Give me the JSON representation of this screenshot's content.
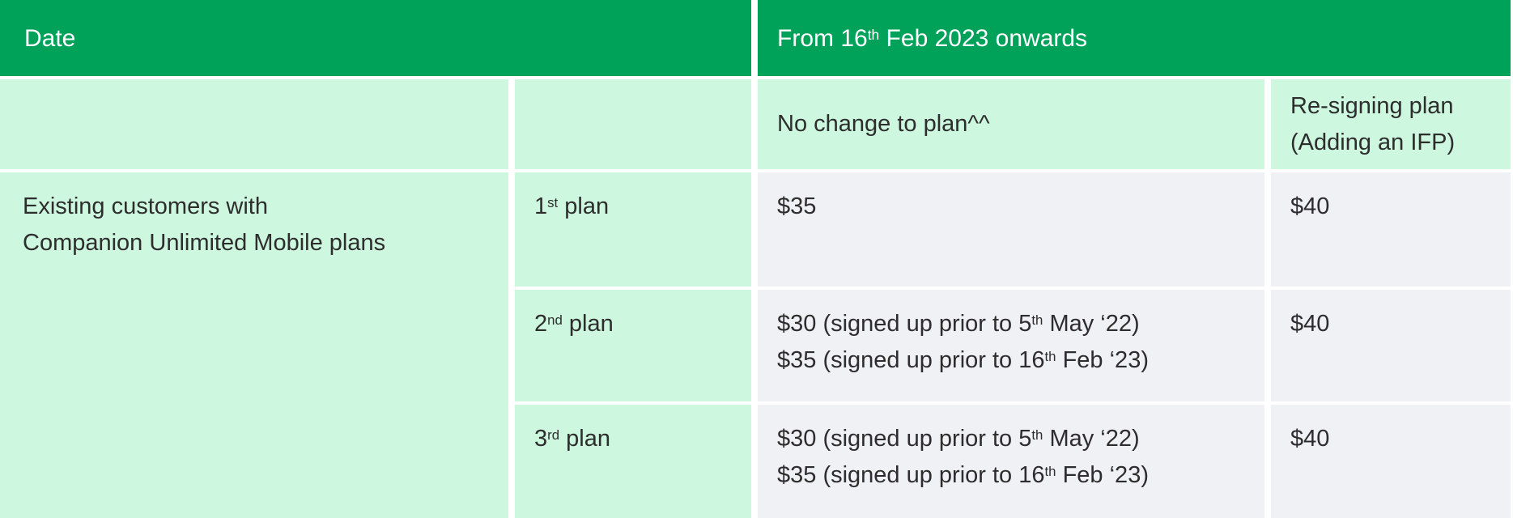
{
  "colors": {
    "header_green": "#00a25a",
    "mint": "#cdf7de",
    "gray": "#f0f1f5",
    "text_dark": "#2d2d2d",
    "header_text": "#ffffff",
    "divider": "#ffffff"
  },
  "table": {
    "header": {
      "date": "Date",
      "from": [
        [
          {
            "t": "From 16"
          },
          {
            "t": "th",
            "s": true
          },
          {
            "t": " Feb 2023 onwards"
          }
        ]
      ]
    },
    "subheader": {
      "no_change": [
        [
          {
            "t": "No change to plan"
          },
          {
            "t": "^^"
          }
        ]
      ],
      "resigning": [
        [
          {
            "t": "Re-signing plan"
          }
        ],
        [
          {
            "t": "(Adding an IFP)"
          }
        ]
      ]
    },
    "group_label": [
      [
        {
          "t": "Existing customers with"
        }
      ],
      [
        {
          "t": "Companion Unlimited Mobile plans"
        }
      ]
    ],
    "rows": [
      {
        "plan": [
          [
            {
              "t": "1"
            },
            {
              "t": "st",
              "s": true
            },
            {
              "t": " plan"
            }
          ]
        ],
        "no_change": [
          [
            {
              "t": "$35"
            }
          ]
        ],
        "resigning": [
          [
            {
              "t": "$40"
            }
          ]
        ]
      },
      {
        "plan": [
          [
            {
              "t": "2"
            },
            {
              "t": "nd",
              "s": true
            },
            {
              "t": " plan"
            }
          ]
        ],
        "no_change": [
          [
            {
              "t": "$30 (signed up prior to 5"
            },
            {
              "t": "th",
              "s": true
            },
            {
              "t": " May ‘22)"
            }
          ],
          [
            {
              "t": "$35 (signed up prior to 16"
            },
            {
              "t": "th",
              "s": true
            },
            {
              "t": " Feb ‘23)"
            }
          ]
        ],
        "resigning": [
          [
            {
              "t": "$40"
            }
          ]
        ]
      },
      {
        "plan": [
          [
            {
              "t": "3"
            },
            {
              "t": "rd",
              "s": true
            },
            {
              "t": " plan"
            }
          ]
        ],
        "no_change": [
          [
            {
              "t": "$30 (signed up prior to 5"
            },
            {
              "t": "th",
              "s": true
            },
            {
              "t": " May ‘22)"
            }
          ],
          [
            {
              "t": "$35 (signed up prior to 16"
            },
            {
              "t": "th",
              "s": true
            },
            {
              "t": " Feb ‘23)"
            }
          ]
        ],
        "resigning": [
          [
            {
              "t": "$40"
            }
          ]
        ]
      }
    ]
  }
}
